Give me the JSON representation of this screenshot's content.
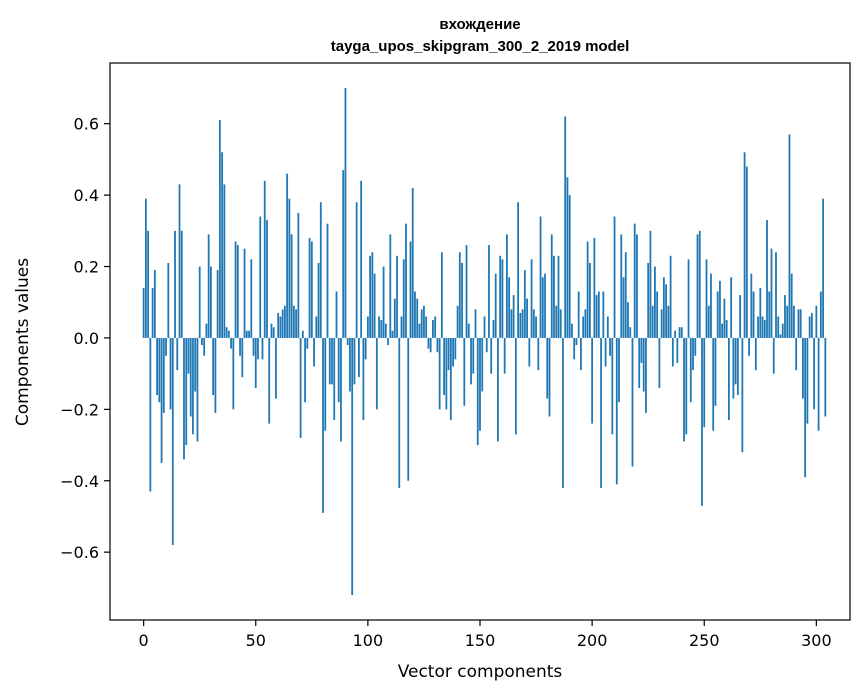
{
  "chart_data": {
    "type": "bar",
    "title_line1": "вхождение",
    "title_line2": "tayga_upos_skipgram_300_2_2019 model",
    "xlabel": "Vector components",
    "ylabel": "Components values",
    "xlim": [
      -15,
      315
    ],
    "ylim": [
      -0.79,
      0.77
    ],
    "xticks": [
      {
        "value": 0,
        "label": "0"
      },
      {
        "value": 50,
        "label": "50"
      },
      {
        "value": 100,
        "label": "100"
      },
      {
        "value": 150,
        "label": "150"
      },
      {
        "value": 200,
        "label": "200"
      },
      {
        "value": 250,
        "label": "250"
      },
      {
        "value": 300,
        "label": "300"
      }
    ],
    "yticks": [
      {
        "value": -0.6,
        "label": "−0.6"
      },
      {
        "value": -0.4,
        "label": "−0.4"
      },
      {
        "value": -0.2,
        "label": "−0.2"
      },
      {
        "value": 0.0,
        "label": "0.0"
      },
      {
        "value": 0.2,
        "label": "0.2"
      },
      {
        "value": 0.4,
        "label": "0.4"
      },
      {
        "value": 0.6,
        "label": "0.6"
      }
    ],
    "bar_color": "#1f77b4",
    "values": [
      0.14,
      0.39,
      0.3,
      -0.43,
      0.14,
      0.19,
      -0.16,
      -0.18,
      -0.35,
      -0.21,
      -0.05,
      0.21,
      -0.2,
      -0.58,
      0.3,
      -0.09,
      0.43,
      0.3,
      -0.34,
      -0.3,
      -0.1,
      -0.22,
      -0.27,
      -0.15,
      -0.29,
      0.2,
      -0.02,
      -0.05,
      0.04,
      0.29,
      0.2,
      -0.16,
      -0.21,
      0.19,
      0.61,
      0.52,
      0.43,
      0.03,
      0.02,
      -0.03,
      -0.2,
      0.27,
      0.26,
      -0.05,
      -0.11,
      0.25,
      0.02,
      0.02,
      0.22,
      -0.05,
      -0.14,
      -0.06,
      0.34,
      -0.06,
      0.44,
      0.33,
      -0.24,
      0.04,
      0.03,
      -0.17,
      0.07,
      0.06,
      0.08,
      0.09,
      0.46,
      0.39,
      0.29,
      0.09,
      0.08,
      0.35,
      -0.28,
      0.02,
      -0.18,
      -0.03,
      0.28,
      0.27,
      -0.08,
      0.06,
      0.21,
      0.38,
      -0.49,
      -0.26,
      0.32,
      -0.13,
      -0.13,
      -0.23,
      0.13,
      -0.18,
      -0.29,
      0.47,
      0.7,
      -0.02,
      -0.15,
      -0.72,
      -0.13,
      0.38,
      -0.11,
      0.44,
      -0.23,
      -0.06,
      0.06,
      0.23,
      0.24,
      0.18,
      -0.2,
      0.06,
      0.05,
      0.2,
      0.04,
      -0.02,
      0.29,
      0.02,
      0.11,
      0.23,
      -0.42,
      0.06,
      0.22,
      0.32,
      -0.4,
      0.27,
      0.42,
      0.13,
      0.11,
      0.04,
      0.08,
      0.09,
      0.06,
      -0.03,
      -0.04,
      0.05,
      0.06,
      -0.04,
      -0.2,
      0.24,
      -0.16,
      -0.2,
      -0.09,
      -0.23,
      -0.08,
      -0.06,
      0.09,
      0.24,
      0.21,
      -0.19,
      0.26,
      0.04,
      -0.13,
      -0.1,
      0.08,
      -0.3,
      -0.26,
      -0.15,
      0.06,
      -0.04,
      0.26,
      -0.1,
      0.05,
      0.18,
      -0.29,
      0.23,
      0.22,
      -0.1,
      0.29,
      0.17,
      0.08,
      0.12,
      -0.27,
      0.38,
      0.07,
      0.08,
      0.19,
      0.11,
      -0.08,
      0.22,
      0.08,
      0.06,
      -0.09,
      0.34,
      0.17,
      0.18,
      -0.17,
      -0.22,
      0.29,
      0.23,
      0.09,
      0.23,
      0.08,
      -0.42,
      0.62,
      0.45,
      0.4,
      0.04,
      -0.06,
      -0.02,
      0.13,
      -0.09,
      0.06,
      0.08,
      0.27,
      0.21,
      -0.24,
      0.28,
      0.12,
      0.13,
      -0.42,
      0.13,
      -0.08,
      0.06,
      -0.05,
      -0.27,
      0.34,
      -0.41,
      -0.18,
      0.29,
      0.17,
      0.24,
      0.1,
      0.03,
      -0.36,
      0.32,
      0.29,
      -0.14,
      -0.07,
      -0.15,
      -0.21,
      0.21,
      0.3,
      0.09,
      0.2,
      0.13,
      -0.14,
      0.08,
      0.17,
      0.15,
      0.09,
      0.23,
      -0.08,
      0.02,
      -0.07,
      0.03,
      0.03,
      -0.29,
      -0.27,
      0.22,
      -0.18,
      -0.09,
      -0.05,
      0.29,
      0.3,
      -0.47,
      -0.25,
      0.22,
      0.09,
      0.18,
      -0.26,
      -0.19,
      0.13,
      0.16,
      0.04,
      0.11,
      0.05,
      -0.23,
      0.17,
      -0.17,
      -0.13,
      -0.16,
      0.12,
      -0.32,
      0.52,
      0.48,
      -0.05,
      0.18,
      0.13,
      -0.09,
      0.06,
      0.14,
      0.06,
      0.05,
      0.33,
      0.13,
      0.25,
      -0.1,
      0.24,
      0.06,
      0.01,
      0.04,
      0.12,
      0.09,
      0.57,
      0.18,
      0.09,
      -0.09,
      0.08,
      0.08,
      -0.17,
      -0.39,
      -0.24,
      0.06,
      0.07,
      -0.2,
      0.09,
      -0.26,
      0.13,
      0.39,
      -0.22
    ],
    "y_scale_values": [
      -0.79,
      0.77
    ]
  }
}
